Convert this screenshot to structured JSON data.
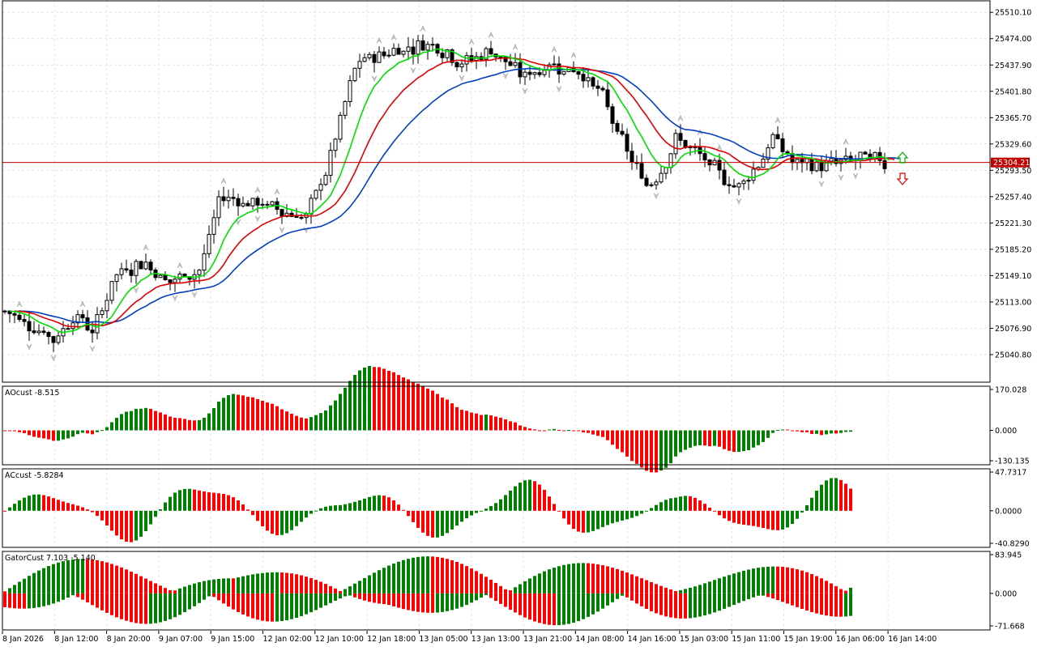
{
  "chart_data": [
    {
      "type": "candlestick",
      "panel": "main",
      "current_price_label": "25304.21",
      "y_ticks": [
        "25510.10",
        "25474.00",
        "25437.90",
        "25401.80",
        "25365.70",
        "25329.60",
        "25293.50",
        "25257.40",
        "25221.30",
        "25185.20",
        "25149.10",
        "25113.00",
        "25076.90",
        "25040.80"
      ],
      "ylim": [
        25003,
        25527
      ],
      "current_price": 25304.21,
      "colors": {
        "up": "#ffffff",
        "down": "#000000",
        "outline": "#000000",
        "ma_fast": "#00e000",
        "ma_mid": "#e00000",
        "ma_slow": "#0040c0",
        "price_line": "#c00000",
        "arrow_up": "#00b000",
        "arrow_down": "#e00000"
      }
    },
    {
      "type": "bar",
      "panel": "ao",
      "label": "AOcust -8.515",
      "y_ticks": [
        "170.028",
        "0.000",
        "-130.135"
      ],
      "ylim": [
        -130.135,
        170.028
      ],
      "colors": {
        "up": "#008000",
        "down": "#ff0000"
      }
    },
    {
      "type": "bar",
      "panel": "ac",
      "label": "ACcust -5.8284",
      "y_ticks": [
        "47.7317",
        "0.0000",
        "-40.8290"
      ],
      "ylim": [
        -40.829,
        47.7317
      ]
    },
    {
      "type": "bar",
      "panel": "gator",
      "label": "GatorCust 7.103 -5.140",
      "y_ticks": [
        "83.945",
        "0.000",
        "-71.668"
      ],
      "ylim": [
        -71.668,
        83.945
      ]
    }
  ],
  "time_axis": [
    "8 Jan 2026",
    "8 Jan 12:00",
    "8 Jan 20:00",
    "9 Jan 07:00",
    "9 Jan 15:00",
    "12 Jan 02:00",
    "12 Jan 10:00",
    "12 Jan 18:00",
    "13 Jan 05:00",
    "13 Jan 13:00",
    "13 Jan 21:00",
    "14 Jan 08:00",
    "14 Jan 16:00",
    "15 Jan 03:00",
    "15 Jan 11:00",
    "15 Jan 19:00",
    "16 Jan 06:00",
    "16 Jan 14:00"
  ]
}
